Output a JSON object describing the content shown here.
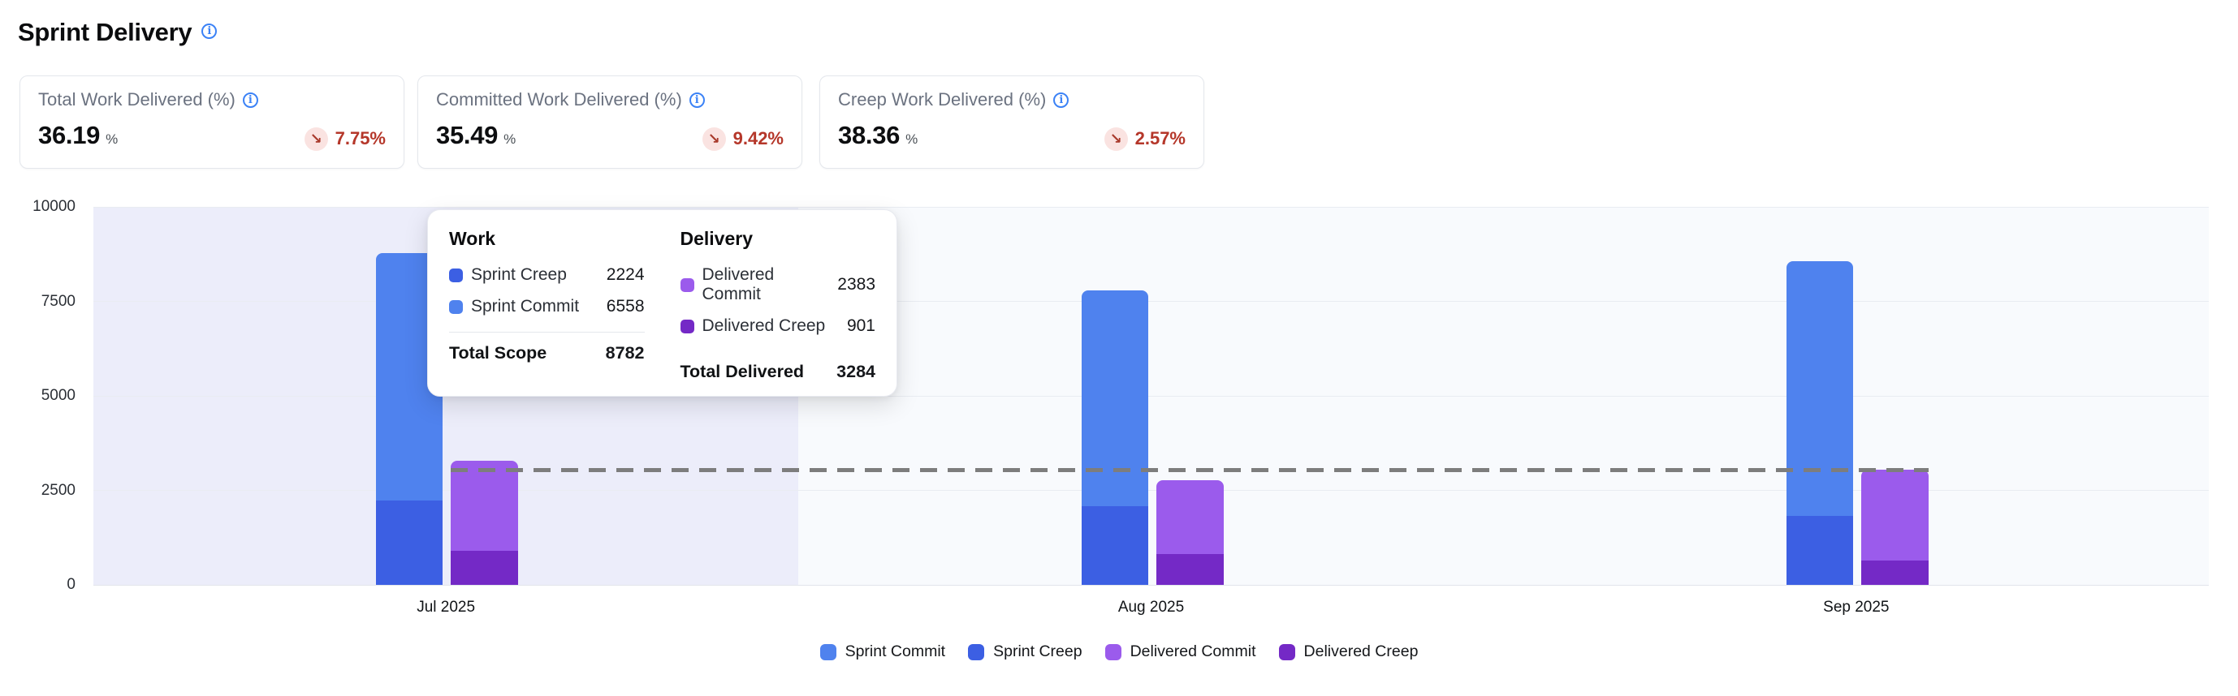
{
  "page": {
    "title": "Sprint Delivery"
  },
  "icons": {
    "info_glyph": "i",
    "trend_down_glyph": "↘"
  },
  "colors": {
    "accent_blue": "#3b82f6",
    "negative_red": "#b5372a",
    "negative_badge_bg": "#fae3e1",
    "sprint_commit": "#4f82ee",
    "sprint_creep": "#3c5fe3",
    "delivered_commit": "#9b5bec",
    "delivered_creep": "#7429c6",
    "highlight_band": "#ecedfa",
    "plot_bg": "#f8fafd",
    "grid_line": "#e9ecf2",
    "reference_line": "#7d7d7d"
  },
  "cards": [
    {
      "label": "Total Work Delivered (%)",
      "value": "36.19",
      "unit": "%",
      "delta": "7.75%",
      "trend": "down"
    },
    {
      "label": "Committed Work Delivered (%)",
      "value": "35.49",
      "unit": "%",
      "delta": "9.42%",
      "trend": "down"
    },
    {
      "label": "Creep Work Delivered (%)",
      "value": "38.36",
      "unit": "%",
      "delta": "2.57%",
      "trend": "down"
    }
  ],
  "tooltip": {
    "work": {
      "title": "Work",
      "rows": [
        {
          "label": "Sprint Creep",
          "value": "2224",
          "color": "#3c5fe3"
        },
        {
          "label": "Sprint Commit",
          "value": "6558",
          "color": "#4f82ee"
        }
      ],
      "total_label": "Total Scope",
      "total_value": "8782"
    },
    "delivery": {
      "title": "Delivery",
      "rows": [
        {
          "label": "Delivered Commit",
          "value": "2383",
          "color": "#9b5bec"
        },
        {
          "label": "Delivered Creep",
          "value": "901",
          "color": "#7429c6"
        }
      ],
      "total_label": "Total Delivered",
      "total_value": "3284"
    }
  },
  "legend": {
    "items": [
      {
        "label": "Sprint Commit",
        "color": "#4f82ee"
      },
      {
        "label": "Sprint Creep",
        "color": "#3c5fe3"
      },
      {
        "label": "Delivered Commit",
        "color": "#9b5bec"
      },
      {
        "label": "Delivered Creep",
        "color": "#7429c6"
      }
    ]
  },
  "chart_data": {
    "type": "bar",
    "categories": [
      "Jul 2025",
      "Aug 2025",
      "Sep 2025"
    ],
    "series": [
      {
        "name": "Sprint Creep",
        "stack": "work",
        "position": "bottom",
        "color": "#3c5fe3",
        "values": [
          2224,
          2090,
          1830
        ]
      },
      {
        "name": "Sprint Commit",
        "stack": "work",
        "position": "top",
        "color": "#4f82ee",
        "values": [
          6558,
          5690,
          6730
        ]
      },
      {
        "name": "Delivered Creep",
        "stack": "delivery",
        "position": "bottom",
        "color": "#7429c6",
        "values": [
          901,
          820,
          650
        ]
      },
      {
        "name": "Delivered Commit",
        "stack": "delivery",
        "position": "top",
        "color": "#9b5bec",
        "values": [
          2383,
          1940,
          2390
        ]
      }
    ],
    "stack_totals": {
      "work": [
        8782,
        7780,
        8560
      ],
      "delivery": [
        3284,
        2760,
        3040
      ]
    },
    "ylim": [
      0,
      10000
    ],
    "yticks": [
      0,
      2500,
      5000,
      7500,
      10000
    ],
    "grid": true,
    "legend_position": "bottom-center",
    "reference_line": {
      "value": 3030,
      "style": "dashed",
      "color": "#7d7d7d"
    },
    "highlighted_category": "Jul 2025"
  }
}
